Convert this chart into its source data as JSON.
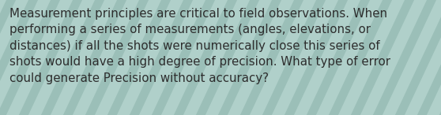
{
  "text": "Measurement principles are critical to field observations. When\nperforming a series of measurements (angles, elevations, or\ndistances) if all the shots were numerically close this series of\nshots would have a high degree of precision. What type of error\ncould generate Precision without accuracy?",
  "background_color": "#9bbfb8",
  "stripe_color_light": "#b0d0ca",
  "stripe_color_dark": "#8fb5ae",
  "text_color": "#2d2d2d",
  "font_size": 10.8,
  "fig_width": 5.58,
  "fig_height": 1.46
}
